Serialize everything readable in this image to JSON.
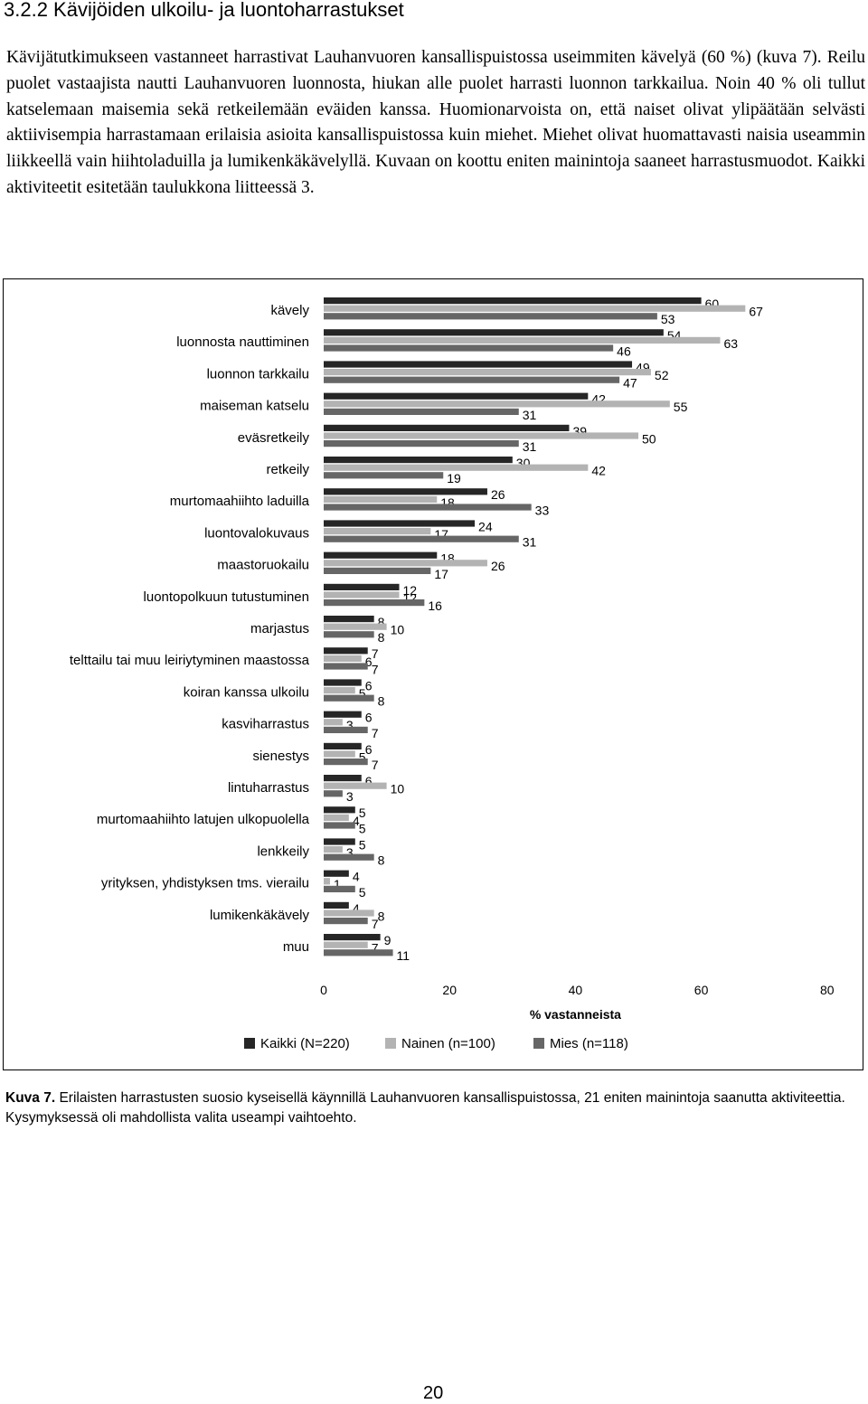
{
  "section": {
    "heading": "3.2.2 Kävijöiden ulkoilu- ja luontoharrastukset",
    "paragraph": "Kävijätutkimukseen vastanneet harrastivat Lauhanvuoren kansallispuistossa useimmiten kävelyä (60 %) (kuva 7). Reilu puolet vastaajista  nautti Lauhanvuoren luonnosta, hiukan alle puolet harrasti luonnon tarkkailua. Noin 40 % oli tullut katselemaan maisemia sekä retkeilemään eväiden kanssa. Huomionarvoista on, että naiset olivat ylipäätään selvästi aktiivisempia harrastamaan erilaisia asioita kansallispuistossa kuin miehet. Miehet olivat huomattavasti naisia useammin liikkeellä vain hiihtoladuilla ja lumikenkäkävelyllä. Kuvaan on koottu eniten mainintoja saaneet harrastusmuodot. Kaikki aktiviteetit esitetään taulukkona liitteessä 3."
  },
  "chart_data": {
    "type": "bar",
    "orientation": "horizontal",
    "categories": [
      "kävely",
      "luonnosta nauttiminen",
      "luonnon tarkkailu",
      "maiseman katselu",
      "eväsretkeily",
      "retkeily",
      "murtomaahiihto laduilla",
      "luontovalokuvaus",
      "maastoruokailu",
      "luontopolkuun tutustuminen",
      "marjastus",
      "telttailu tai muu leiriytyminen maastossa",
      "koiran kanssa ulkoilu",
      "kasviharrastus",
      "sienestys",
      "lintuharrastus",
      "murtomaahiihto latujen ulkopuolella",
      "lenkkeily",
      "yrityksen, yhdistyksen tms. vierailu",
      "lumikenkäkävely",
      "muu"
    ],
    "series": [
      {
        "name": "Kaikki (N=220)",
        "color": "#262626",
        "values": [
          60,
          54,
          49,
          42,
          39,
          30,
          26,
          24,
          18,
          12,
          8,
          7,
          6,
          6,
          6,
          6,
          5,
          5,
          4,
          4,
          9
        ]
      },
      {
        "name": "Nainen (n=100)",
        "color": "#b3b3b3",
        "values": [
          67,
          63,
          52,
          55,
          50,
          42,
          18,
          17,
          26,
          12,
          10,
          6,
          5,
          3,
          5,
          10,
          4,
          3,
          1,
          8,
          7
        ]
      },
      {
        "name": "Mies (n=118)",
        "color": "#666666",
        "values": [
          53,
          46,
          47,
          31,
          31,
          19,
          33,
          31,
          17,
          16,
          8,
          7,
          8,
          7,
          7,
          3,
          5,
          8,
          5,
          7,
          11
        ]
      }
    ],
    "xlim": [
      0,
      80
    ],
    "xticks": [
      "0",
      "20",
      "40",
      "60",
      "80"
    ],
    "xlabel": "% vastanneista",
    "legend_position": "bottom",
    "grid": false
  },
  "caption": {
    "label": "Kuva 7.",
    "text": " Erilaisten harrastusten suosio kyseisellä käynnillä Lauhanvuoren kansallispuistossa, 21 eniten mainintoja saanutta aktiviteettia. Kysymyksessä oli mahdollista valita useampi vaihtoehto."
  },
  "page": {
    "number": "20"
  }
}
